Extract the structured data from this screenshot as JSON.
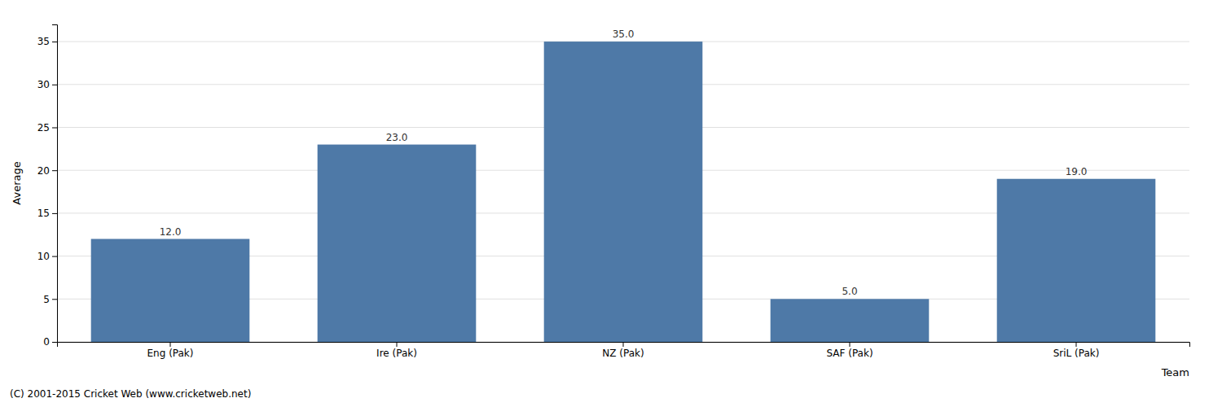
{
  "chart_data": {
    "type": "bar",
    "categories": [
      "Eng (Pak)",
      "Ire (Pak)",
      "NZ (Pak)",
      "SAF (Pak)",
      "SriL (Pak)"
    ],
    "values": [
      12.0,
      23.0,
      35.0,
      5.0,
      19.0
    ],
    "value_labels": [
      "12.0",
      "23.0",
      "35.0",
      "5.0",
      "19.0"
    ],
    "data_labels": true,
    "x_label": "Team",
    "y_label": "Average",
    "annotations": [
      "(C) 2001-2015 Cricket Web (www.cricketweb.net)"
    ],
    "ylim": [
      0,
      37
    ],
    "yticks": [
      0,
      5,
      10,
      15,
      20,
      25,
      30,
      35
    ],
    "grid": true
  }
}
